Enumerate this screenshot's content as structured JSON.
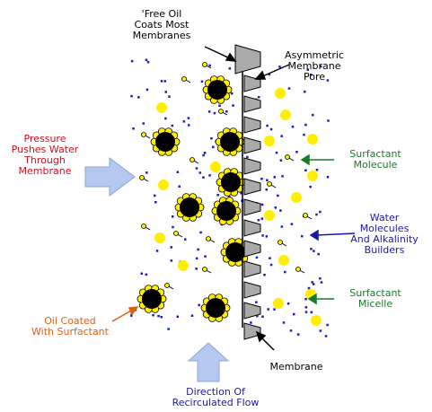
{
  "labels": {
    "free_oil": [
      "'Free Oil",
      "Coats Most",
      "Membranes"
    ],
    "pore": [
      "Asymmetric",
      "Membrane",
      "Pore"
    ],
    "pressure": [
      "Pressure",
      "Pushes Water",
      "Through",
      "Membrane"
    ],
    "surfactant_molecule": [
      "Surfactant",
      "Molecule"
    ],
    "water": [
      "Water",
      "Molecules",
      "And Alkalinity",
      "Builders"
    ],
    "micelle": [
      "Surfactant",
      "Micelle"
    ],
    "oil_coated": [
      "Oil Coated",
      "With Surfactant"
    ],
    "membrane": [
      "Membrane"
    ],
    "flow": [
      "Direction Of",
      "Recirculated Flow"
    ]
  }
}
